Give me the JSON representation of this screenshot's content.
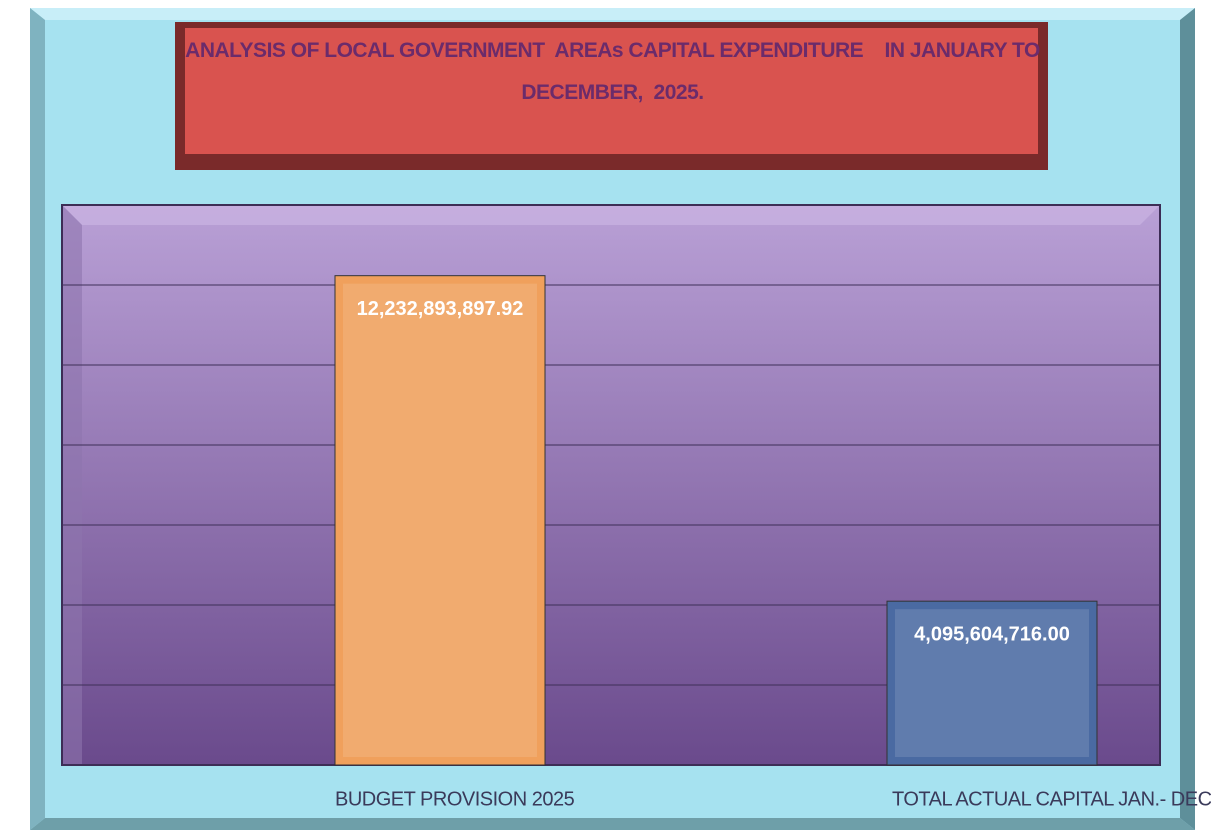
{
  "chart_data": {
    "type": "bar",
    "title": "ANALYSIS OF LOCAL GOVERNMENT  AREAs CAPITAL EXPENDITURE    IN JANUARY TO DECEMBER,  2025.",
    "categories": [
      "BUDGET PROVISION 2025",
      "TOTAL ACTUAL CAPITAL JAN.- DEC.,"
    ],
    "values": [
      12232893897.92,
      4095604716.0
    ],
    "value_labels": [
      "12,232,893,897.92",
      "4,095,604,716.00"
    ],
    "colors": [
      "#f0a05c",
      "#4a6aa2"
    ],
    "ylim": [
      0,
      14000000000
    ],
    "yticks": [
      0,
      2000000000,
      4000000000,
      6000000000,
      8000000000,
      10000000000,
      12000000000,
      14000000000
    ],
    "grid": true
  }
}
